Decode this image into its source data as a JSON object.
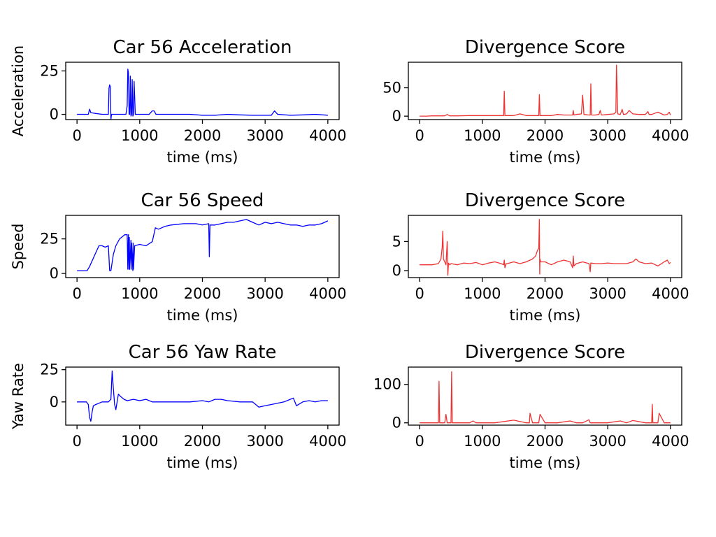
{
  "chart_data": [
    {
      "type": "line",
      "title": "Car 56 Acceleration",
      "xlabel": "time (ms)",
      "ylabel": "Acceleration",
      "xlim": [
        -180,
        4180
      ],
      "ylim": [
        -3,
        30
      ],
      "xticks": [
        0,
        1000,
        2000,
        3000,
        4000
      ],
      "yticks": [
        0,
        25
      ],
      "color": "#0000ff",
      "series": [
        {
          "x": [
            0,
            180,
            200,
            220,
            300,
            400,
            480,
            500,
            510,
            520,
            530,
            540,
            550,
            560,
            600,
            700,
            780,
            800,
            810,
            820,
            830,
            840,
            850,
            860,
            870,
            880,
            890,
            900,
            910,
            930,
            1000,
            1100,
            1150,
            1200,
            1230,
            1260,
            1300,
            1400,
            1600,
            1800,
            2000,
            2200,
            2400,
            2600,
            2800,
            3000,
            3100,
            3150,
            3200,
            3400,
            3600,
            3800,
            4000
          ],
          "y": [
            0,
            0,
            3,
            1,
            0.5,
            0,
            0,
            0,
            15,
            17,
            16,
            -3,
            0,
            0,
            0,
            0,
            0,
            5,
            26,
            24,
            0,
            0,
            22,
            -1,
            0,
            20,
            -1,
            0,
            19,
            0,
            0,
            0,
            0,
            2,
            2,
            0,
            0,
            0,
            0,
            0,
            -0.5,
            -0.5,
            0,
            -0.3,
            -0.5,
            -0.5,
            -0.5,
            2,
            0,
            -0.5,
            -0.3,
            0,
            -0.5
          ]
        }
      ]
    },
    {
      "type": "line",
      "title": "Divergence Score",
      "xlabel": "time (ms)",
      "ylabel": "",
      "xlim": [
        -180,
        4180
      ],
      "ylim": [
        -6,
        95
      ],
      "xticks": [
        0,
        1000,
        2000,
        3000,
        4000
      ],
      "yticks": [
        0,
        50
      ],
      "color": "#ee3333",
      "series": [
        {
          "x": [
            0,
            100,
            200,
            300,
            400,
            440,
            480,
            600,
            800,
            1000,
            1200,
            1340,
            1350,
            1360,
            1500,
            1600,
            1700,
            1800,
            1900,
            1910,
            1920,
            2000,
            2100,
            2200,
            2300,
            2400,
            2440,
            2450,
            2460,
            2500,
            2580,
            2600,
            2620,
            2700,
            2720,
            2730,
            2740,
            2800,
            2860,
            2880,
            2900,
            3000,
            3100,
            3130,
            3140,
            3160,
            3200,
            3230,
            3250,
            3300,
            3340,
            3400,
            3500,
            3600,
            3640,
            3660,
            3700,
            3800,
            3900,
            3950,
            3980,
            4000
          ],
          "y": [
            0,
            0,
            0.5,
            0.5,
            0.5,
            3,
            0.5,
            0.5,
            1,
            1,
            1,
            1,
            44,
            1,
            1,
            4,
            1,
            1,
            1,
            38,
            1,
            1,
            1,
            3,
            2,
            2,
            2,
            10,
            2,
            3,
            4,
            37,
            3,
            2,
            2,
            57,
            2,
            2,
            3,
            10,
            2,
            3,
            4,
            7,
            90,
            4,
            3,
            12,
            3,
            4,
            10,
            4,
            3,
            3,
            8,
            3,
            3,
            7,
            2,
            3,
            7,
            2
          ]
        }
      ]
    },
    {
      "type": "line",
      "title": "Car 56 Speed",
      "xlabel": "time (ms)",
      "ylabel": "Speed",
      "xlim": [
        -180,
        4180
      ],
      "ylim": [
        -3,
        42
      ],
      "xticks": [
        0,
        1000,
        2000,
        3000,
        4000
      ],
      "yticks": [
        0,
        25
      ],
      "color": "#0000ff",
      "series": [
        {
          "x": [
            0,
            150,
            160,
            200,
            300,
            350,
            400,
            450,
            500,
            520,
            530,
            540,
            580,
            620,
            680,
            760,
            800,
            810,
            820,
            830,
            835,
            840,
            860,
            865,
            870,
            890,
            895,
            900,
            920,
            1000,
            1100,
            1200,
            1250,
            1300,
            1400,
            1500,
            1700,
            1900,
            2000,
            2100,
            2110,
            2120,
            2200,
            2300,
            2400,
            2500,
            2600,
            2700,
            2800,
            2900,
            3000,
            3100,
            3200,
            3300,
            3400,
            3500,
            3600,
            3700,
            3800,
            3900,
            4000
          ],
          "y": [
            2,
            2,
            2,
            5,
            15,
            20,
            20,
            19,
            20,
            2,
            2,
            2,
            14,
            20,
            25,
            28,
            28,
            3,
            28,
            3,
            26,
            3,
            24,
            3,
            22,
            2,
            22,
            3,
            20,
            21,
            20,
            23,
            33,
            32,
            34,
            35,
            36,
            36,
            35,
            36,
            12,
            35,
            35,
            36,
            37,
            37,
            38,
            39,
            37,
            35,
            37,
            36,
            37,
            36,
            35,
            35,
            34,
            35,
            35,
            36,
            38
          ]
        }
      ]
    },
    {
      "type": "line",
      "title": "Divergence Score",
      "xlabel": "time (ms)",
      "ylabel": "",
      "xlim": [
        -180,
        4180
      ],
      "ylim": [
        -1.2,
        9.5
      ],
      "xticks": [
        0,
        1000,
        2000,
        3000,
        4000
      ],
      "yticks": [
        0,
        5
      ],
      "color": "#ee3333",
      "series": [
        {
          "x": [
            0,
            100,
            200,
            300,
            340,
            360,
            370,
            380,
            400,
            420,
            440,
            450,
            460,
            480,
            500,
            600,
            700,
            800,
            900,
            1000,
            1100,
            1200,
            1300,
            1340,
            1350,
            1360,
            1380,
            1400,
            1500,
            1600,
            1700,
            1800,
            1850,
            1880,
            1900,
            1910,
            1915,
            1920,
            1930,
            2000,
            2100,
            2200,
            2300,
            2400,
            2440,
            2450,
            2460,
            2500,
            2600,
            2700,
            2720,
            2730,
            2800,
            2900,
            3000,
            3100,
            3200,
            3300,
            3400,
            3450,
            3500,
            3600,
            3700,
            3800,
            3900,
            3950,
            3980,
            4000
          ],
          "y": [
            1,
            1,
            1,
            1.2,
            2,
            4,
            6.8,
            2,
            1.5,
            1,
            5,
            -0.8,
            1.3,
            1,
            1.2,
            1,
            1.3,
            1.2,
            1.4,
            1,
            1.3,
            1.5,
            1.2,
            1,
            1.8,
            0.5,
            1.2,
            1.2,
            1.5,
            1.2,
            1.5,
            2,
            2.5,
            3.5,
            3.8,
            8.8,
            -0.6,
            2,
            1.5,
            1.5,
            1,
            1.5,
            1.8,
            1.5,
            0.5,
            2.5,
            0.8,
            1.2,
            1.5,
            1.2,
            -0.2,
            1.3,
            1.2,
            1.2,
            1.3,
            1.2,
            1.2,
            1.2,
            1.5,
            2,
            1.5,
            1.2,
            1.3,
            0.8,
            1.5,
            1.8,
            1.2,
            1.4
          ]
        }
      ]
    },
    {
      "type": "line",
      "title": "Car 56 Yaw Rate",
      "xlabel": "time (ms)",
      "ylabel": "Yaw Rate",
      "xlim": [
        -180,
        4180
      ],
      "ylim": [
        -18,
        27
      ],
      "xticks": [
        0,
        1000,
        2000,
        3000,
        4000
      ],
      "yticks": [
        0,
        25
      ],
      "color": "#0000ff",
      "series": [
        {
          "x": [
            0,
            150,
            180,
            200,
            220,
            240,
            260,
            300,
            400,
            500,
            540,
            560,
            580,
            600,
            620,
            640,
            660,
            700,
            750,
            800,
            900,
            1000,
            1100,
            1200,
            1300,
            1500,
            1800,
            2000,
            2100,
            2200,
            2300,
            2400,
            2600,
            2800,
            2850,
            2900,
            3000,
            3100,
            3300,
            3400,
            3450,
            3500,
            3600,
            3700,
            3800,
            3900,
            4000
          ],
          "y": [
            0,
            0,
            -2,
            -12,
            -15,
            -8,
            -3,
            -2,
            0,
            0,
            2,
            24,
            10,
            -2,
            -6,
            0,
            6,
            4,
            2,
            1,
            2,
            1,
            2,
            0,
            0,
            0,
            0,
            1,
            0,
            2,
            2,
            1,
            0,
            0,
            -2,
            -4,
            -3,
            -2,
            0,
            2,
            3,
            -3,
            0,
            1,
            0,
            1,
            1
          ]
        }
      ]
    },
    {
      "type": "line",
      "title": "Divergence Score",
      "xlabel": "time (ms)",
      "ylabel": "",
      "xlim": [
        -180,
        4180
      ],
      "ylim": [
        -6,
        145
      ],
      "xticks": [
        0,
        1000,
        2000,
        3000,
        4000
      ],
      "yticks": [
        0,
        100
      ],
      "color": "#ee3333",
      "series": [
        {
          "x": [
            0,
            100,
            200,
            300,
            310,
            320,
            400,
            420,
            440,
            500,
            510,
            520,
            600,
            800,
            850,
            900,
            1000,
            1200,
            1500,
            1700,
            1750,
            1760,
            1800,
            1900,
            1920,
            2000,
            2200,
            2400,
            2500,
            2600,
            2700,
            2720,
            2800,
            3000,
            3200,
            3300,
            3400,
            3600,
            3700,
            3710,
            3720,
            3800,
            3820,
            3900,
            4000
          ],
          "y": [
            0,
            0,
            0,
            0,
            108,
            0,
            0,
            22,
            0,
            0,
            133,
            0,
            0,
            0,
            5,
            0,
            0,
            0,
            7,
            0,
            0,
            25,
            0,
            0,
            22,
            0,
            0,
            5,
            0,
            0,
            8,
            0,
            0,
            0,
            5,
            0,
            6,
            0,
            0,
            48,
            0,
            0,
            25,
            0,
            0
          ]
        }
      ]
    }
  ]
}
